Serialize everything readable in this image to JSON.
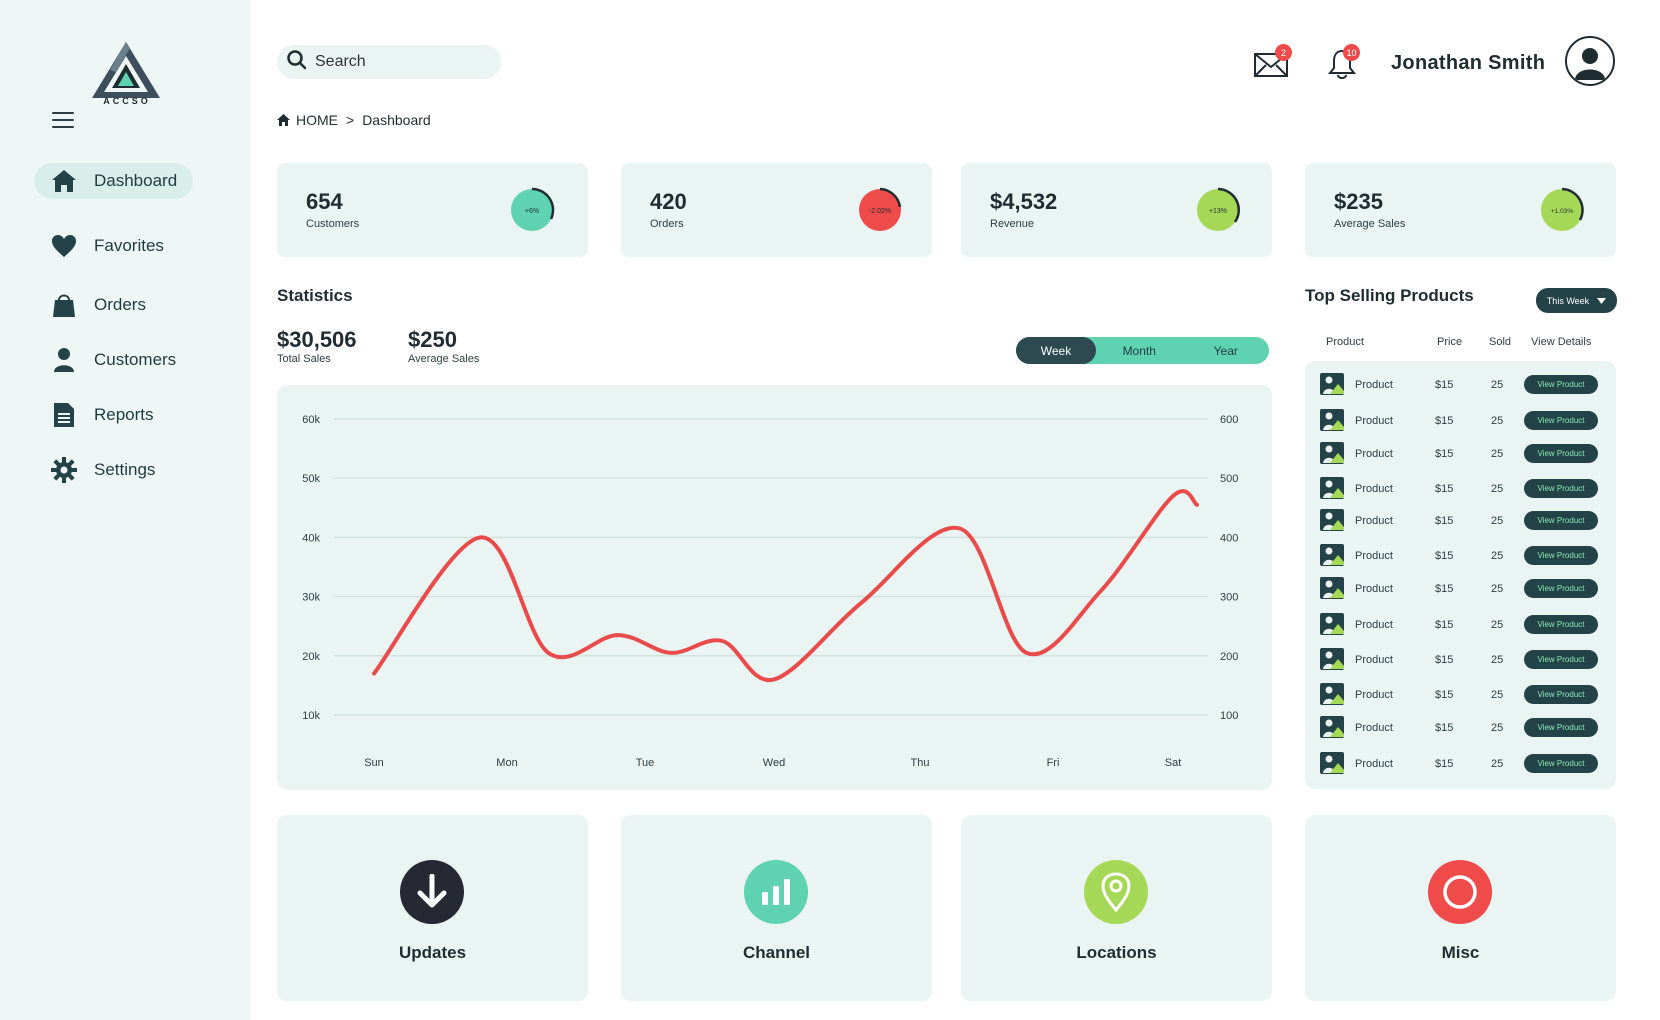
{
  "brand": {
    "name": "ACCSO"
  },
  "sidebar": {
    "items": [
      {
        "label": "Dashboard",
        "icon": "home-icon",
        "active": true
      },
      {
        "label": "Favorites",
        "icon": "heart-icon"
      },
      {
        "label": "Orders",
        "icon": "bag-icon"
      },
      {
        "label": "Customers",
        "icon": "user-icon"
      },
      {
        "label": "Reports",
        "icon": "document-icon"
      },
      {
        "label": "Settings",
        "icon": "gear-icon"
      }
    ]
  },
  "header": {
    "search_placeholder": "Search",
    "mail_badge": "2",
    "bell_badge": "10",
    "user_name": "Jonathan Smith"
  },
  "breadcrumb": {
    "home": "HOME",
    "separator": ">",
    "current": "Dashboard"
  },
  "stats": [
    {
      "value": "654",
      "label": "Customers",
      "change": "+6%",
      "color": "#5fd3b1"
    },
    {
      "value": "420",
      "label": "Orders",
      "change": "-2.02%",
      "color": "#ef4b4b"
    },
    {
      "value": "$4,532",
      "label": "Revenue",
      "change": "+13%",
      "color": "#a6d857"
    },
    {
      "value": "$235",
      "label": "Average Sales",
      "change": "+1.03%",
      "color": "#a6d857"
    }
  ],
  "statistics": {
    "title": "Statistics",
    "total_sales": "$30,506",
    "total_sales_label": "Total Sales",
    "average_sales": "$250",
    "average_sales_label": "Average Sales",
    "periods": [
      "Week",
      "Month",
      "Year"
    ],
    "selected_period": "Week"
  },
  "chart_data": {
    "type": "line",
    "x": [
      "Sun",
      "Mon",
      "Tue",
      "Wed",
      "Thu",
      "Fri",
      "Sat"
    ],
    "y_left_ticks": [
      "10k",
      "20k",
      "30k",
      "40k",
      "50k",
      "60k"
    ],
    "y_right_ticks": [
      "100",
      "200",
      "300",
      "400",
      "500",
      "600"
    ],
    "ylim": [
      10000,
      60000
    ],
    "grid": true,
    "line_color": "#e94b4b",
    "series": [
      {
        "points": [
          [
            0,
            17000
          ],
          [
            0.8,
            40000
          ],
          [
            1.3,
            20500
          ],
          [
            1.8,
            23500
          ],
          [
            2.2,
            20500
          ],
          [
            2.6,
            22500
          ],
          [
            3.0,
            16000
          ],
          [
            3.6,
            29000
          ],
          [
            4.3,
            41500
          ],
          [
            4.8,
            20500
          ],
          [
            5.4,
            31000
          ],
          [
            6.0,
            47000
          ],
          [
            6.2,
            45500
          ]
        ]
      }
    ]
  },
  "top_selling": {
    "title": "Top Selling Products",
    "filter": "This Week",
    "columns": [
      "Product",
      "Price",
      "Sold",
      "View Details"
    ],
    "rows": [
      {
        "product": "Product",
        "price": "$15",
        "sold": "25",
        "action": "View Product"
      },
      {
        "product": "Product",
        "price": "$15",
        "sold": "25",
        "action": "View Product"
      },
      {
        "product": "Product",
        "price": "$15",
        "sold": "25",
        "action": "View Product"
      },
      {
        "product": "Product",
        "price": "$15",
        "sold": "25",
        "action": "View Product"
      },
      {
        "product": "Product",
        "price": "$15",
        "sold": "25",
        "action": "View Product"
      },
      {
        "product": "Product",
        "price": "$15",
        "sold": "25",
        "action": "View Product"
      },
      {
        "product": "Product",
        "price": "$15",
        "sold": "25",
        "action": "View Product"
      },
      {
        "product": "Product",
        "price": "$15",
        "sold": "25",
        "action": "View Product"
      },
      {
        "product": "Product",
        "price": "$15",
        "sold": "25",
        "action": "View Product"
      },
      {
        "product": "Product",
        "price": "$15",
        "sold": "25",
        "action": "View Product"
      },
      {
        "product": "Product",
        "price": "$15",
        "sold": "25",
        "action": "View Product"
      },
      {
        "product": "Product",
        "price": "$15",
        "sold": "25",
        "action": "View Product"
      }
    ]
  },
  "tiles": [
    {
      "label": "Updates",
      "icon": "download-arrow-icon",
      "color": "#262833"
    },
    {
      "label": "Channel",
      "icon": "bar-chart-icon",
      "color": "#5fd3b1"
    },
    {
      "label": "Locations",
      "icon": "location-pin-icon",
      "color": "#a6d857"
    },
    {
      "label": "Misc",
      "icon": "circle-icon",
      "color": "#ef4b4b"
    }
  ]
}
